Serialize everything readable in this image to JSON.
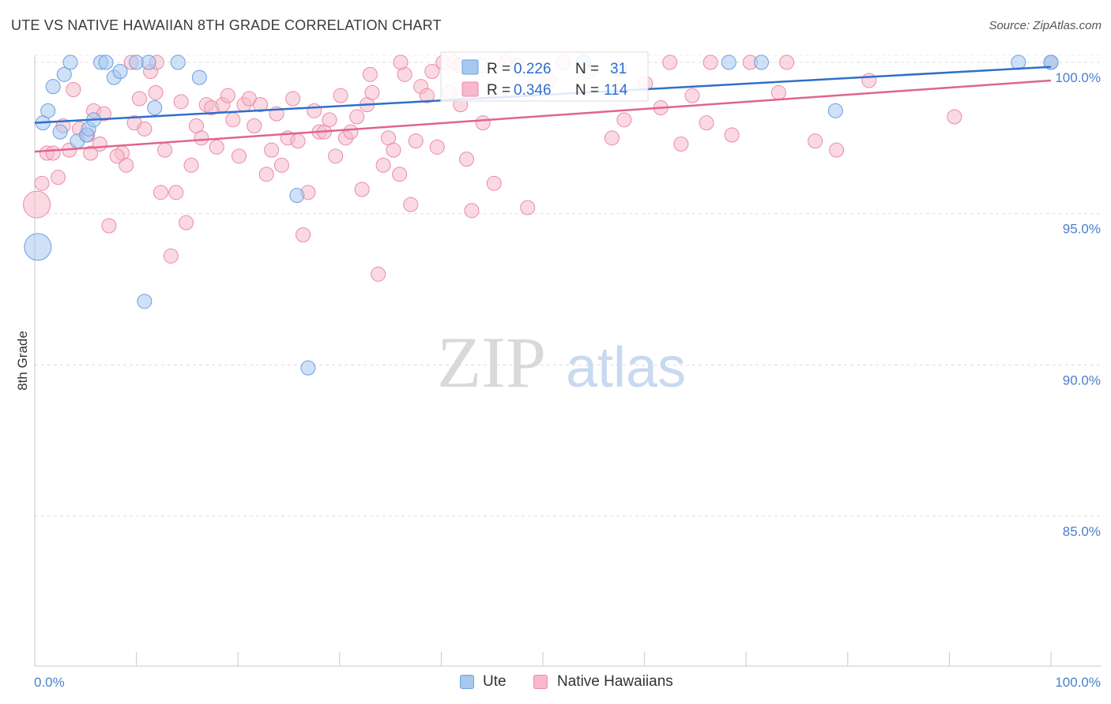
{
  "title": "UTE VS NATIVE HAWAIIAN 8TH GRADE CORRELATION CHART",
  "source": "Source: ZipAtlas.com",
  "watermark": {
    "zip": "ZIP",
    "atlas": "atlas"
  },
  "colors": {
    "ute_fill": "#a8c8f0",
    "ute_stroke": "#6a9fe0",
    "ute_line": "#2f6fcc",
    "nh_fill": "#f7b9cb",
    "nh_stroke": "#ea8aa8",
    "nh_line": "#e0648e",
    "axis_text": "#4a7fd0",
    "grid": "#dddddd"
  },
  "stats": {
    "ute": {
      "r_label": "R = ",
      "r": "0.226",
      "n_label": "N = ",
      "n": "31"
    },
    "nh": {
      "r_label": "R = ",
      "r": "0.346",
      "n_label": "N = ",
      "n": "114"
    }
  },
  "legend": {
    "ute": "Ute",
    "nh": "Native Hawaiians"
  },
  "chart_data": {
    "type": "scatter",
    "title": "UTE VS NATIVE HAWAIIAN 8TH GRADE CORRELATION CHART",
    "xlabel": "",
    "ylabel": "8th Grade",
    "xlim": [
      0,
      100
    ],
    "ylim": [
      80.5,
      100.6
    ],
    "x_tick_labels": [
      "0.0%",
      "100.0%"
    ],
    "y_ticks": [
      85,
      90,
      95,
      100
    ],
    "y_tick_labels": [
      "85.0%",
      "90.0%",
      "95.0%",
      "100.0%"
    ],
    "grid": "horizontal dashed",
    "legend_position": "bottom-center",
    "series": [
      {
        "name": "Ute",
        "trend": {
          "x": [
            0,
            100
          ],
          "y": [
            98.0,
            99.85
          ]
        },
        "points": [
          {
            "x": 0.8,
            "y": 98.0
          },
          {
            "x": 1.3,
            "y": 98.4
          },
          {
            "x": 1.8,
            "y": 99.2
          },
          {
            "x": 2.5,
            "y": 97.7
          },
          {
            "x": 2.9,
            "y": 99.6
          },
          {
            "x": 3.5,
            "y": 100.0
          },
          {
            "x": 4.2,
            "y": 97.4
          },
          {
            "x": 5.1,
            "y": 97.6
          },
          {
            "x": 5.3,
            "y": 97.8
          },
          {
            "x": 5.8,
            "y": 98.1
          },
          {
            "x": 6.5,
            "y": 100.0
          },
          {
            "x": 7.0,
            "y": 100.0
          },
          {
            "x": 7.8,
            "y": 99.5
          },
          {
            "x": 8.4,
            "y": 99.7
          },
          {
            "x": 10.0,
            "y": 100.0
          },
          {
            "x": 10.8,
            "y": 92.1
          },
          {
            "x": 11.2,
            "y": 100.0
          },
          {
            "x": 11.8,
            "y": 98.5
          },
          {
            "x": 14.1,
            "y": 100.0
          },
          {
            "x": 16.2,
            "y": 99.5
          },
          {
            "x": 0.3,
            "y": 93.9,
            "big": true
          },
          {
            "x": 25.8,
            "y": 95.6
          },
          {
            "x": 26.9,
            "y": 89.9
          },
          {
            "x": 54.0,
            "y": 100.0
          },
          {
            "x": 57.5,
            "y": 99.8
          },
          {
            "x": 68.3,
            "y": 100.0
          },
          {
            "x": 71.5,
            "y": 100.0
          },
          {
            "x": 78.8,
            "y": 98.4
          },
          {
            "x": 96.8,
            "y": 100.0
          },
          {
            "x": 100.0,
            "y": 100.0
          },
          {
            "x": 100.0,
            "y": 100.0
          }
        ]
      },
      {
        "name": "Native Hawaiians",
        "trend": {
          "x": [
            0,
            100
          ],
          "y": [
            97.05,
            99.4
          ]
        },
        "points": [
          {
            "x": 0.2,
            "y": 95.3,
            "big": true
          },
          {
            "x": 0.7,
            "y": 96.0
          },
          {
            "x": 1.2,
            "y": 97.0
          },
          {
            "x": 1.8,
            "y": 97.0
          },
          {
            "x": 2.3,
            "y": 96.2
          },
          {
            "x": 2.8,
            "y": 97.9
          },
          {
            "x": 3.4,
            "y": 97.1
          },
          {
            "x": 3.8,
            "y": 99.1
          },
          {
            "x": 4.4,
            "y": 97.8
          },
          {
            "x": 5.2,
            "y": 97.6
          },
          {
            "x": 5.5,
            "y": 97.0
          },
          {
            "x": 5.8,
            "y": 98.4
          },
          {
            "x": 6.4,
            "y": 97.3
          },
          {
            "x": 6.8,
            "y": 98.3
          },
          {
            "x": 7.3,
            "y": 94.6
          },
          {
            "x": 8.6,
            "y": 97.0
          },
          {
            "x": 9.0,
            "y": 96.6
          },
          {
            "x": 9.5,
            "y": 100.0
          },
          {
            "x": 9.8,
            "y": 98.0
          },
          {
            "x": 10.3,
            "y": 98.8
          },
          {
            "x": 10.8,
            "y": 97.8
          },
          {
            "x": 11.4,
            "y": 99.7
          },
          {
            "x": 11.9,
            "y": 99.0
          },
          {
            "x": 12.4,
            "y": 95.7
          },
          {
            "x": 12.8,
            "y": 97.1
          },
          {
            "x": 13.4,
            "y": 93.6
          },
          {
            "x": 13.9,
            "y": 95.7
          },
          {
            "x": 14.4,
            "y": 98.7
          },
          {
            "x": 14.9,
            "y": 94.7
          },
          {
            "x": 15.4,
            "y": 96.6
          },
          {
            "x": 15.9,
            "y": 97.9
          },
          {
            "x": 16.4,
            "y": 97.5
          },
          {
            "x": 16.9,
            "y": 98.6
          },
          {
            "x": 17.4,
            "y": 98.5
          },
          {
            "x": 17.9,
            "y": 97.2
          },
          {
            "x": 18.5,
            "y": 98.6
          },
          {
            "x": 19.0,
            "y": 98.9
          },
          {
            "x": 19.5,
            "y": 98.1
          },
          {
            "x": 20.1,
            "y": 96.9
          },
          {
            "x": 20.6,
            "y": 98.6
          },
          {
            "x": 21.1,
            "y": 98.8
          },
          {
            "x": 21.6,
            "y": 97.9
          },
          {
            "x": 22.2,
            "y": 98.6
          },
          {
            "x": 22.8,
            "y": 96.3
          },
          {
            "x": 23.3,
            "y": 97.1
          },
          {
            "x": 23.8,
            "y": 98.3
          },
          {
            "x": 24.3,
            "y": 96.6
          },
          {
            "x": 24.9,
            "y": 97.5
          },
          {
            "x": 25.4,
            "y": 98.8
          },
          {
            "x": 25.9,
            "y": 97.4
          },
          {
            "x": 26.4,
            "y": 94.3
          },
          {
            "x": 26.9,
            "y": 95.7
          },
          {
            "x": 27.5,
            "y": 98.4
          },
          {
            "x": 28.0,
            "y": 97.7
          },
          {
            "x": 28.5,
            "y": 97.7
          },
          {
            "x": 29.0,
            "y": 98.1
          },
          {
            "x": 29.6,
            "y": 96.9
          },
          {
            "x": 30.1,
            "y": 98.9
          },
          {
            "x": 30.6,
            "y": 97.5
          },
          {
            "x": 31.1,
            "y": 97.7
          },
          {
            "x": 31.7,
            "y": 98.2
          },
          {
            "x": 32.2,
            "y": 95.8
          },
          {
            "x": 32.7,
            "y": 98.6
          },
          {
            "x": 33.2,
            "y": 99.0
          },
          {
            "x": 33.8,
            "y": 93.0
          },
          {
            "x": 34.3,
            "y": 96.6
          },
          {
            "x": 34.8,
            "y": 97.5
          },
          {
            "x": 35.3,
            "y": 97.1
          },
          {
            "x": 35.9,
            "y": 96.3
          },
          {
            "x": 36.4,
            "y": 99.6
          },
          {
            "x": 37.0,
            "y": 95.3
          },
          {
            "x": 37.5,
            "y": 97.4
          },
          {
            "x": 38.0,
            "y": 99.2
          },
          {
            "x": 38.6,
            "y": 98.9
          },
          {
            "x": 39.1,
            "y": 99.7
          },
          {
            "x": 39.6,
            "y": 97.2
          },
          {
            "x": 40.2,
            "y": 100.0
          },
          {
            "x": 40.8,
            "y": 99.0
          },
          {
            "x": 41.3,
            "y": 100.0
          },
          {
            "x": 41.9,
            "y": 98.6
          },
          {
            "x": 42.5,
            "y": 96.8
          },
          {
            "x": 43.0,
            "y": 95.1
          },
          {
            "x": 44.1,
            "y": 98.0
          },
          {
            "x": 45.2,
            "y": 96.0
          },
          {
            "x": 46.3,
            "y": 100.0
          },
          {
            "x": 48.5,
            "y": 95.2
          },
          {
            "x": 50.6,
            "y": 99.4
          },
          {
            "x": 52.0,
            "y": 100.0
          },
          {
            "x": 54.5,
            "y": 99.7
          },
          {
            "x": 56.8,
            "y": 97.5
          },
          {
            "x": 58.0,
            "y": 98.1
          },
          {
            "x": 60.1,
            "y": 99.3
          },
          {
            "x": 61.6,
            "y": 98.5
          },
          {
            "x": 62.5,
            "y": 100.0
          },
          {
            "x": 63.6,
            "y": 97.3
          },
          {
            "x": 64.7,
            "y": 98.9
          },
          {
            "x": 66.1,
            "y": 98.0
          },
          {
            "x": 66.5,
            "y": 100.0
          },
          {
            "x": 68.6,
            "y": 97.6
          },
          {
            "x": 70.4,
            "y": 100.0
          },
          {
            "x": 73.2,
            "y": 99.0
          },
          {
            "x": 74.0,
            "y": 100.0
          },
          {
            "x": 76.8,
            "y": 97.4
          },
          {
            "x": 78.9,
            "y": 97.1
          },
          {
            "x": 82.1,
            "y": 99.4
          },
          {
            "x": 90.5,
            "y": 98.2
          },
          {
            "x": 100.0,
            "y": 100.0
          },
          {
            "x": 41.8,
            "y": 99.9
          },
          {
            "x": 36.0,
            "y": 100.0
          },
          {
            "x": 44.0,
            "y": 99.9
          },
          {
            "x": 47.5,
            "y": 99.9
          },
          {
            "x": 33.0,
            "y": 99.6
          },
          {
            "x": 8.1,
            "y": 96.9
          },
          {
            "x": 12.0,
            "y": 100.0
          }
        ]
      }
    ]
  }
}
